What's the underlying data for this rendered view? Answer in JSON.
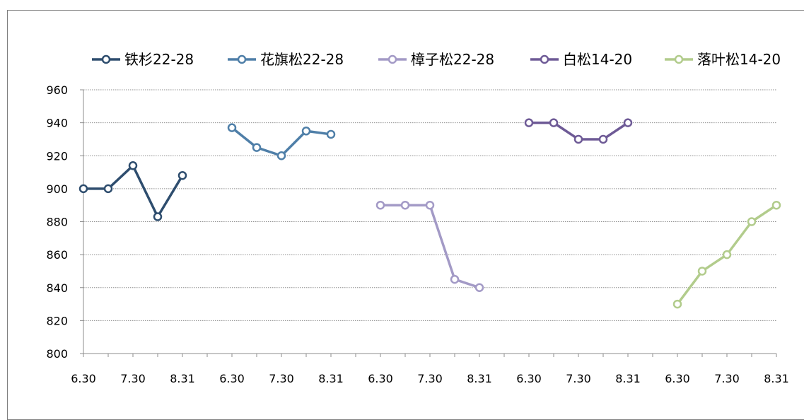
{
  "chart_data": {
    "type": "line",
    "title": "",
    "xlabel": "",
    "ylabel": "",
    "ylim": [
      800,
      960
    ],
    "y_ticks": [
      800,
      820,
      840,
      860,
      880,
      900,
      920,
      940,
      960
    ],
    "x_tick_labels": [
      "6.30",
      "7.30",
      "8.31",
      "6.30",
      "7.30",
      "8.31",
      "6.30",
      "7.30",
      "8.31",
      "6.30",
      "7.30",
      "8.31",
      "6.30",
      "7.30",
      "8.31"
    ],
    "grid": true,
    "legend_position": "top",
    "series": [
      {
        "name": "铁杉22-28",
        "color": "#2e4d6e",
        "x": [
          0,
          1,
          2,
          3,
          4
        ],
        "values": [
          900,
          900,
          914,
          883,
          908
        ]
      },
      {
        "name": "花旗松22-28",
        "color": "#4f7fa8",
        "x": [
          6,
          7,
          8,
          9,
          10
        ],
        "values": [
          937,
          925,
          920,
          935,
          933
        ]
      },
      {
        "name": "樟子松22-28",
        "color": "#a39ac6",
        "x": [
          12,
          13,
          14,
          15,
          16
        ],
        "values": [
          890,
          890,
          890,
          845,
          840
        ]
      },
      {
        "name": "白松14-20",
        "color": "#6e5a96",
        "x": [
          18,
          19,
          20,
          21,
          22
        ],
        "values": [
          940,
          940,
          930,
          930,
          940
        ]
      },
      {
        "name": "落叶松14-20",
        "color": "#b2cc8c",
        "x": [
          24,
          25,
          26,
          27,
          28
        ],
        "values": [
          830,
          850,
          860,
          880,
          890
        ]
      }
    ]
  }
}
